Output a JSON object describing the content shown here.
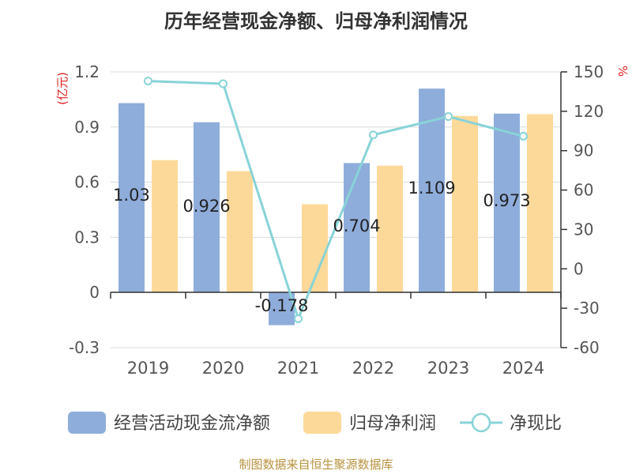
{
  "chart_data": {
    "type": "bar",
    "title": "历年经营现金净额、归母净利润情况",
    "categories": [
      "2019",
      "2020",
      "2021",
      "2022",
      "2023",
      "2024"
    ],
    "left_axis": {
      "unit_label": "(亿元)",
      "ylim": [
        -0.3,
        1.2
      ],
      "ticks": [
        "1.2",
        "0.9",
        "0.6",
        "0.3",
        "0",
        "-0.3"
      ]
    },
    "right_axis": {
      "unit_label": "%",
      "ylim": [
        -60,
        150
      ],
      "ticks": [
        "150",
        "120",
        "90",
        "60",
        "30",
        "0",
        "-30",
        "-60"
      ]
    },
    "series": [
      {
        "name": "经营活动现金流净额",
        "type": "bar",
        "axis": "left",
        "color": "#8eaddb",
        "values": [
          1.03,
          0.926,
          -0.178,
          0.704,
          1.109,
          0.973
        ],
        "labels": [
          "1.03",
          "0.926",
          "-0.178",
          "0.704",
          "1.109",
          "0.973"
        ]
      },
      {
        "name": "归母净利润",
        "type": "bar",
        "axis": "left",
        "color": "#fdd999",
        "values": [
          0.72,
          0.66,
          0.48,
          0.69,
          0.96,
          0.97
        ]
      },
      {
        "name": "净现比",
        "type": "line",
        "axis": "right",
        "color": "#88d3d8",
        "values": [
          143,
          141,
          -38,
          102,
          116,
          101
        ]
      }
    ],
    "legend_position": "bottom",
    "grid": true,
    "source": "制图数据来自恒生聚源数据库"
  }
}
